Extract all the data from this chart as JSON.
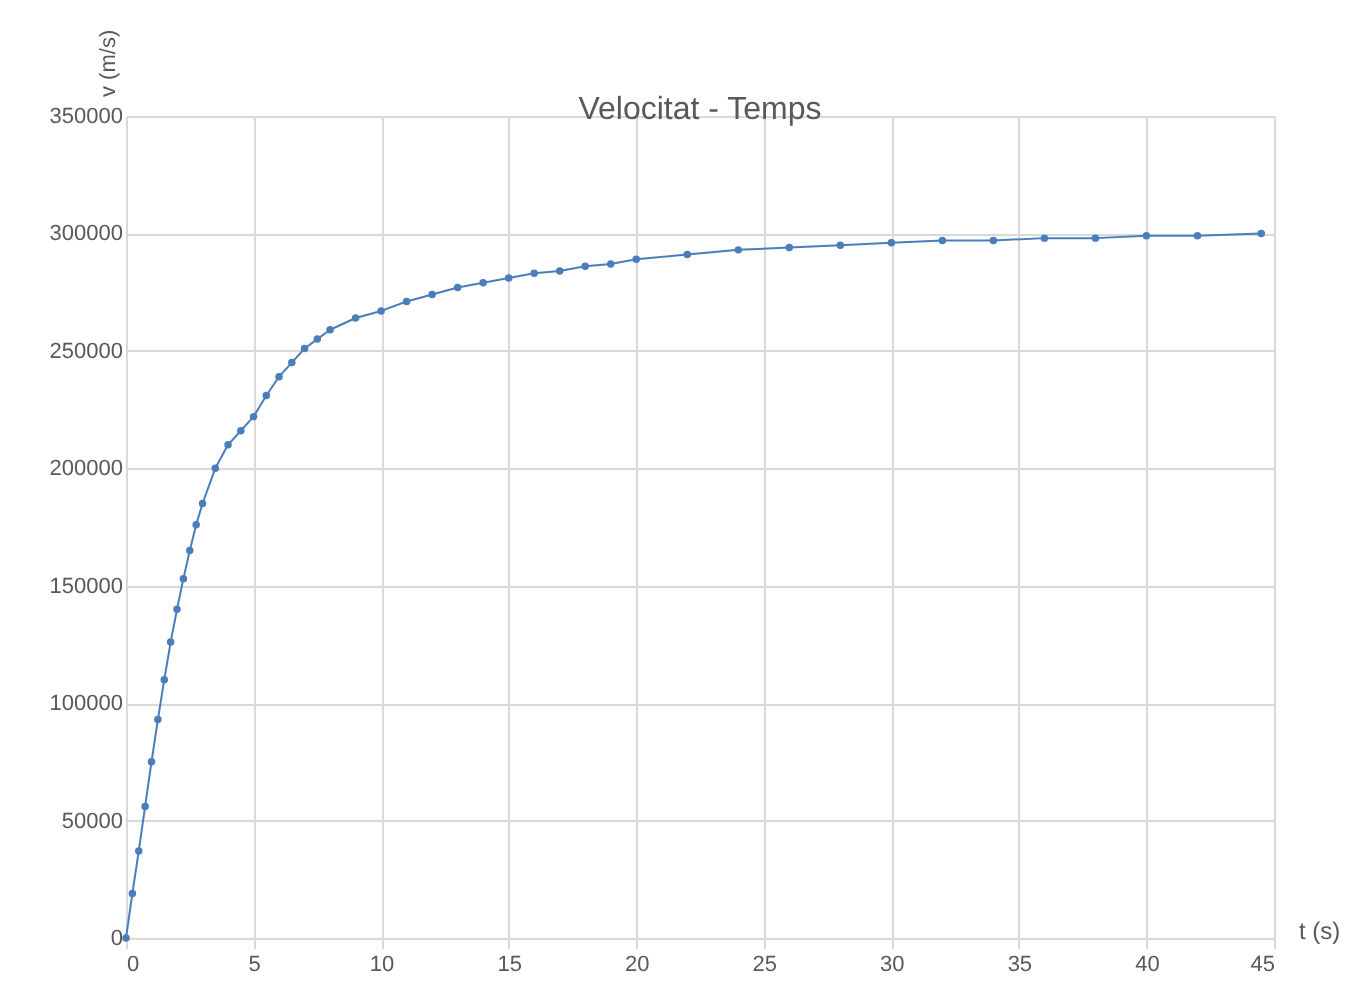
{
  "chart_data": {
    "type": "line",
    "title": "Velocitat - Temps",
    "xlabel": "t (s)",
    "ylabel": "v (m/s)",
    "x": [
      0,
      0.25,
      0.5,
      0.75,
      1,
      1.25,
      1.5,
      1.75,
      2,
      2.25,
      2.5,
      2.75,
      3,
      3.5,
      4,
      4.5,
      5,
      5.5,
      6,
      6.5,
      7,
      7.5,
      8,
      9,
      10,
      11,
      12,
      13,
      14,
      15,
      16,
      17,
      18,
      19,
      20,
      22,
      24,
      26,
      28,
      30,
      32,
      34,
      36,
      38,
      40,
      42,
      44.5
    ],
    "series": [
      {
        "color": "#4a7ebb",
        "values": [
          0,
          19000,
          37000,
          56000,
          75000,
          93000,
          110000,
          126000,
          140000,
          153000,
          165000,
          176000,
          185000,
          200000,
          210000,
          216000,
          222000,
          231000,
          239000,
          245000,
          251000,
          255000,
          259000,
          264000,
          267000,
          271000,
          274000,
          277000,
          279000,
          281000,
          283000,
          284000,
          286000,
          287000,
          289000,
          291000,
          293000,
          294000,
          295000,
          296000,
          297000,
          297000,
          298000,
          298000,
          299000,
          299000,
          300000
        ]
      }
    ],
    "xlim": [
      0,
      45
    ],
    "xticks": [
      0,
      5,
      10,
      15,
      20,
      25,
      30,
      35,
      40,
      45
    ],
    "ylim": [
      0,
      350000
    ],
    "yticks": [
      0,
      50000,
      100000,
      150000,
      200000,
      250000,
      300000,
      350000
    ],
    "grid": true,
    "marker": "circle",
    "line_style": "solid"
  }
}
